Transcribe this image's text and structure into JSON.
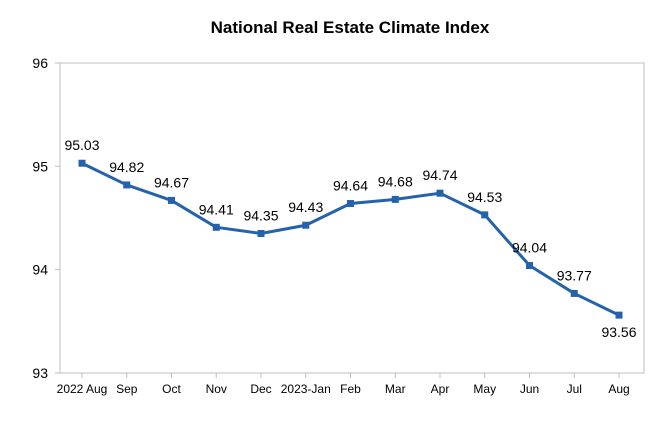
{
  "chart_data": {
    "type": "line",
    "title": "National Real Estate Climate Index",
    "xlabel": "",
    "ylabel": "",
    "categories": [
      "2022 Aug",
      "Sep",
      "Oct",
      "Nov",
      "Dec",
      "2023-Jan",
      "Feb",
      "Mar",
      "Apr",
      "May",
      "Jun",
      "Jul",
      "Aug"
    ],
    "series": [
      {
        "values": [
          95.03,
          94.82,
          94.67,
          94.41,
          94.35,
          94.43,
          94.64,
          94.68,
          94.74,
          94.53,
          94.04,
          93.77,
          93.56
        ],
        "data_labels": [
          "95.03",
          "94.82",
          "94.67",
          "94.41",
          "94.35",
          "94.43",
          "94.64",
          "94.68",
          "94.74",
          "94.53",
          "94.04",
          "93.77",
          "93.56"
        ]
      }
    ],
    "ylim": [
      93,
      96
    ],
    "yticks": [
      93,
      94,
      95,
      96
    ],
    "ytick_labels": [
      "93",
      "94",
      "95",
      "96"
    ],
    "grid": false,
    "legend": "none",
    "line_color": "#2462ad",
    "marker": "square"
  }
}
